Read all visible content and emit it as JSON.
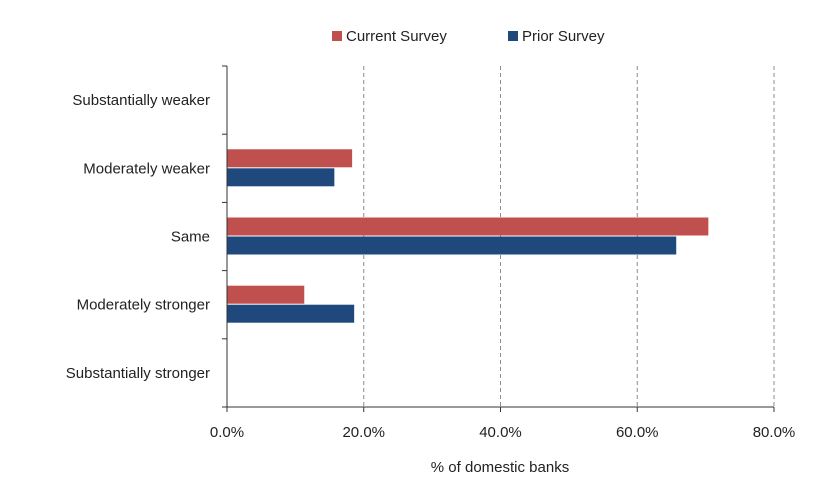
{
  "chart_data": {
    "type": "bar",
    "orientation": "horizontal",
    "categories": [
      "Substantially weaker",
      "Moderately weaker",
      "Same",
      "Moderately stronger",
      "Substantially stronger"
    ],
    "series": [
      {
        "name": "Current Survey",
        "values": [
          0,
          18.3,
          70.4,
          11.3,
          0
        ],
        "color": "#c0504d"
      },
      {
        "name": "Prior Survey",
        "values": [
          0,
          15.7,
          65.7,
          18.6,
          0
        ],
        "color": "#1f497d"
      }
    ],
    "xlabel": "% of domestic banks",
    "ylabel": "",
    "xlim": [
      0,
      80
    ],
    "xticks": [
      "0.0%",
      "20.0%",
      "40.0%",
      "60.0%",
      "80.0%"
    ],
    "grid": "vertical dashed",
    "legend_position": "top"
  }
}
